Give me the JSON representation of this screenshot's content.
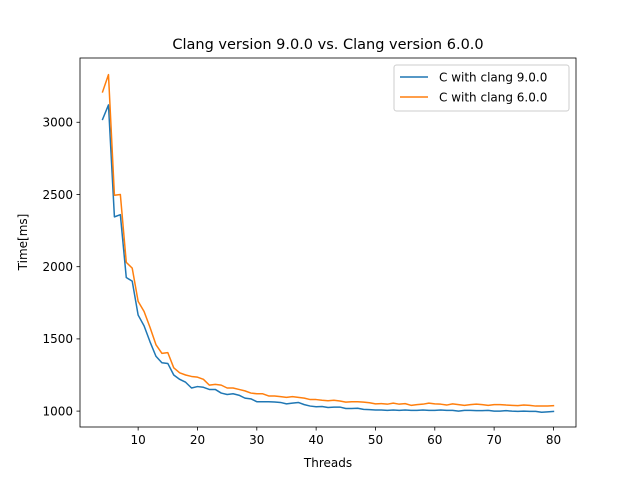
{
  "chart_data": {
    "type": "line",
    "title": "Clang version 9.0.0 vs. Clang version 6.0.0",
    "xlabel": "Threads",
    "ylabel": "Time[ms]",
    "xlim": [
      0.2,
      83.8
    ],
    "ylim": [
      890,
      3445
    ],
    "xticks": [
      10,
      20,
      30,
      40,
      50,
      60,
      70,
      80
    ],
    "yticks": [
      1000,
      1500,
      2000,
      2500,
      3000
    ],
    "grid": false,
    "legend_position": "top-right",
    "x": [
      4,
      5,
      6,
      7,
      8,
      9,
      10,
      11,
      12,
      13,
      14,
      15,
      16,
      17,
      18,
      19,
      20,
      21,
      22,
      23,
      24,
      25,
      26,
      27,
      28,
      29,
      30,
      31,
      32,
      33,
      34,
      35,
      36,
      37,
      38,
      39,
      40,
      41,
      42,
      43,
      44,
      45,
      46,
      47,
      48,
      49,
      50,
      51,
      52,
      53,
      54,
      55,
      56,
      57,
      58,
      59,
      60,
      61,
      62,
      63,
      64,
      65,
      66,
      67,
      68,
      69,
      70,
      71,
      72,
      73,
      74,
      75,
      76,
      77,
      78,
      79,
      80
    ],
    "series": [
      {
        "name": "C with clang 9.0.0",
        "color": "#1f77b4",
        "values": [
          3020,
          3120,
          2345,
          2360,
          1925,
          1900,
          1665,
          1590,
          1480,
          1380,
          1335,
          1330,
          1250,
          1220,
          1200,
          1160,
          1170,
          1165,
          1150,
          1150,
          1125,
          1115,
          1120,
          1110,
          1090,
          1085,
          1065,
          1065,
          1065,
          1063,
          1060,
          1050,
          1055,
          1060,
          1045,
          1035,
          1030,
          1032,
          1025,
          1028,
          1028,
          1018,
          1018,
          1020,
          1012,
          1010,
          1008,
          1008,
          1005,
          1008,
          1005,
          1008,
          1005,
          1005,
          1008,
          1005,
          1005,
          1008,
          1005,
          1005,
          1000,
          1005,
          1005,
          1003,
          1003,
          1005,
          1000,
          1000,
          1003,
          1000,
          998,
          1000,
          998,
          998,
          992,
          995,
          998
        ]
      },
      {
        "name": "C with clang 6.0.0",
        "color": "#ff7f0e",
        "values": [
          3210,
          3330,
          2495,
          2500,
          2030,
          1990,
          1760,
          1690,
          1580,
          1460,
          1400,
          1405,
          1300,
          1265,
          1250,
          1240,
          1235,
          1220,
          1180,
          1185,
          1180,
          1160,
          1160,
          1150,
          1140,
          1125,
          1120,
          1120,
          1105,
          1105,
          1100,
          1095,
          1100,
          1095,
          1090,
          1080,
          1080,
          1075,
          1072,
          1075,
          1070,
          1062,
          1065,
          1065,
          1062,
          1058,
          1050,
          1052,
          1048,
          1055,
          1048,
          1052,
          1040,
          1045,
          1048,
          1055,
          1050,
          1048,
          1042,
          1050,
          1045,
          1040,
          1045,
          1048,
          1045,
          1040,
          1045,
          1045,
          1042,
          1040,
          1038,
          1042,
          1040,
          1035,
          1035,
          1035,
          1038
        ]
      }
    ]
  }
}
